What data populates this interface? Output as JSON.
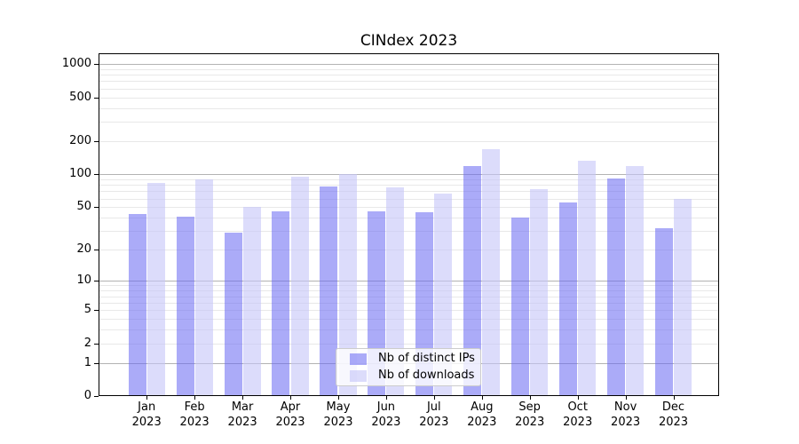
{
  "title": "CINdex 2023",
  "colors": {
    "bar_distinct_ips": "rgba(102,102,242,0.55)",
    "bar_downloads": "rgba(196,196,249,0.6)",
    "bar_distinct_ips_over_white": "#aaaaf8",
    "bar_downloads_over_white": "#dcdcfb",
    "major_gridline": "#b3b3b3",
    "minor_gridline": "#e8e8e8",
    "axis_spine": "#000000",
    "text": "#000000",
    "legend_border": "#cccccc",
    "legend_background": "rgba(255,255,255,0.8)"
  },
  "chart_data": {
    "type": "bar",
    "title": "CINdex 2023",
    "categories": [
      "Jan 2023",
      "Feb 2023",
      "Mar 2023",
      "Apr 2023",
      "May 2023",
      "Jun 2023",
      "Jul 2023",
      "Aug 2023",
      "Sep 2023",
      "Oct 2023",
      "Nov 2023",
      "Dec 2023"
    ],
    "series": [
      {
        "name": "Nb of distinct IPs",
        "color": "rgba(102,102,242,0.55)",
        "values": [
          43,
          41,
          29,
          46,
          77,
          46,
          45,
          118,
          40,
          55,
          92,
          32
        ]
      },
      {
        "name": "Nb of downloads",
        "color": "rgba(196,196,249,0.6)",
        "values": [
          83,
          90,
          50,
          95,
          100,
          76,
          67,
          170,
          73,
          133,
          118,
          60
        ]
      }
    ],
    "xlabel": "",
    "ylabel": "",
    "y_scale": "log1p",
    "y_tick_values": [
      0,
      1,
      2,
      5,
      10,
      20,
      50,
      100,
      200,
      500,
      1000
    ],
    "y_tick_labels": [
      "0",
      "1",
      "2",
      "5",
      "10",
      "20",
      "50",
      "100",
      "200",
      "500",
      "1000"
    ],
    "y_major_gridlines": [
      1,
      10,
      100,
      1000
    ],
    "ylim": [
      0,
      1250
    ],
    "grid": true,
    "legend_position": "lower center"
  }
}
